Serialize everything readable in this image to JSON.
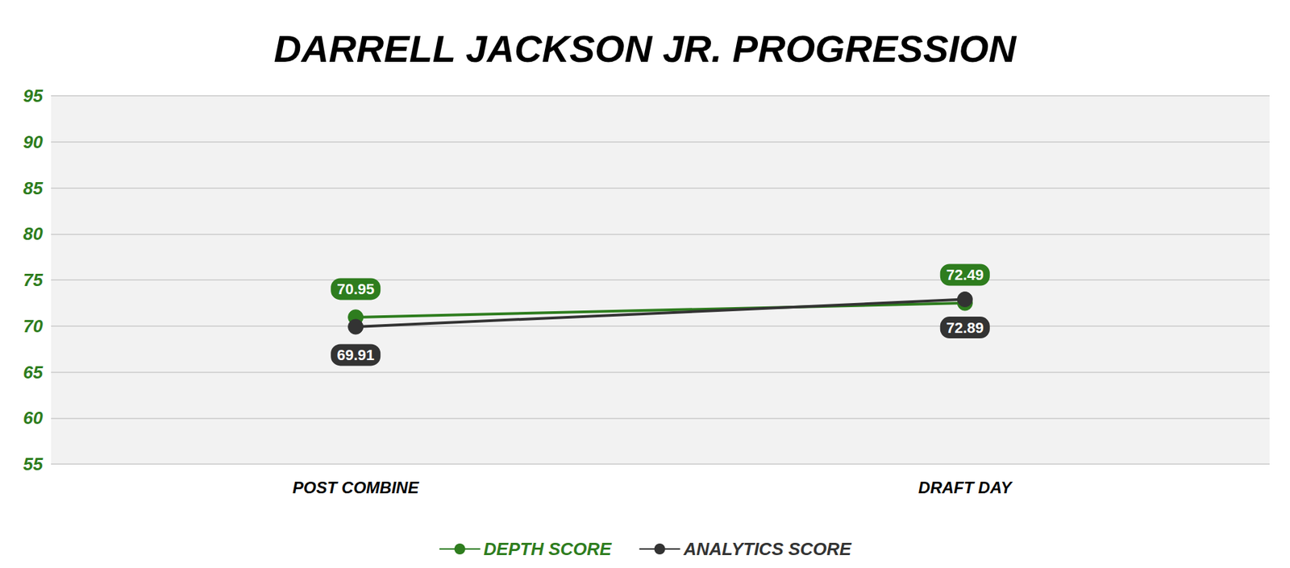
{
  "chart_data": {
    "type": "line",
    "title": "DARRELL JACKSON JR. PROGRESSION",
    "categories": [
      "POST COMBINE",
      "DRAFT DAY"
    ],
    "series": [
      {
        "name": "DEPTH SCORE",
        "color": "#2e7d1e",
        "values": [
          70.95,
          72.49
        ]
      },
      {
        "name": "ANALYTICS SCORE",
        "color": "#333333",
        "values": [
          69.91,
          72.89
        ]
      }
    ],
    "ylim": [
      55,
      95
    ],
    "yticks": [
      55,
      60,
      65,
      70,
      75,
      80,
      85,
      90,
      95
    ],
    "grid": true,
    "legend": "bottom",
    "data_labels": true,
    "marker": "circle"
  }
}
